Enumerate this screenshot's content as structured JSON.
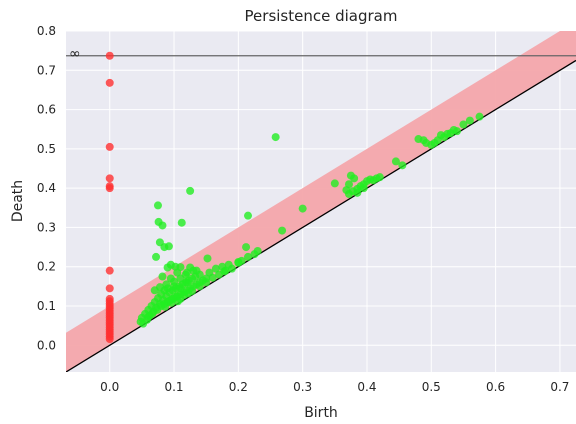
{
  "chart_data": {
    "type": "scatter",
    "title": "Persistence diagram",
    "xlabel": "Birth",
    "ylabel": "Death",
    "xlim": [
      -0.068,
      0.725
    ],
    "ylim": [
      -0.068,
      0.8
    ],
    "x_ticks": [
      0.0,
      0.1,
      0.2,
      0.3,
      0.4,
      0.5,
      0.6,
      0.7
    ],
    "y_ticks": [
      0.0,
      0.1,
      0.2,
      0.3,
      0.4,
      0.5,
      0.6,
      0.7,
      0.8
    ],
    "x_tick_labels": [
      "0.0",
      "0.1",
      "0.2",
      "0.3",
      "0.4",
      "0.5",
      "0.6",
      "0.7"
    ],
    "y_tick_labels": [
      "0.0",
      "0.1",
      "0.2",
      "0.3",
      "0.4",
      "0.5",
      "0.6",
      "0.7",
      "0.8"
    ],
    "grid": true,
    "infinity_line": {
      "y": 0.737,
      "label": "∞",
      "color": "#666666"
    },
    "diagonal_band": {
      "width": 0.1,
      "color": "#f4a6ab"
    },
    "diagonal_color": "#000000",
    "background": "#eaeaf2",
    "series": [
      {
        "color": "#ff3030",
        "points": [
          [
            0.0,
            0.737
          ],
          [
            0.0,
            0.668
          ],
          [
            0.0,
            0.505
          ],
          [
            0.0,
            0.425
          ],
          [
            0.0,
            0.405
          ],
          [
            0.0,
            0.4
          ],
          [
            0.0,
            0.19
          ],
          [
            0.0,
            0.145
          ],
          [
            0.0,
            0.118
          ],
          [
            0.0,
            0.112
          ],
          [
            0.0,
            0.106
          ],
          [
            0.0,
            0.1
          ],
          [
            0.0,
            0.094
          ],
          [
            0.0,
            0.088
          ],
          [
            0.0,
            0.082
          ],
          [
            0.0,
            0.076
          ],
          [
            0.0,
            0.07
          ],
          [
            0.0,
            0.064
          ],
          [
            0.0,
            0.058
          ],
          [
            0.0,
            0.052
          ],
          [
            0.0,
            0.046
          ],
          [
            0.0,
            0.04
          ],
          [
            0.0,
            0.034
          ],
          [
            0.0,
            0.028
          ],
          [
            0.0,
            0.022
          ],
          [
            0.0,
            0.016
          ]
        ]
      },
      {
        "color": "#22ee22",
        "points": [
          [
            0.258,
            0.53
          ],
          [
            0.125,
            0.393
          ],
          [
            0.075,
            0.356
          ],
          [
            0.082,
            0.305
          ],
          [
            0.076,
            0.314
          ],
          [
            0.112,
            0.312
          ],
          [
            0.078,
            0.262
          ],
          [
            0.092,
            0.252
          ],
          [
            0.085,
            0.25
          ],
          [
            0.072,
            0.225
          ],
          [
            0.215,
            0.33
          ],
          [
            0.212,
            0.25
          ],
          [
            0.268,
            0.292
          ],
          [
            0.3,
            0.348
          ],
          [
            0.152,
            0.221
          ],
          [
            0.095,
            0.205
          ],
          [
            0.102,
            0.2
          ],
          [
            0.09,
            0.198
          ],
          [
            0.11,
            0.199
          ],
          [
            0.125,
            0.198
          ],
          [
            0.13,
            0.19
          ],
          [
            0.105,
            0.185
          ],
          [
            0.118,
            0.18
          ],
          [
            0.082,
            0.175
          ],
          [
            0.095,
            0.17
          ],
          [
            0.14,
            0.18
          ],
          [
            0.155,
            0.185
          ],
          [
            0.165,
            0.195
          ],
          [
            0.175,
            0.2
          ],
          [
            0.185,
            0.205
          ],
          [
            0.19,
            0.195
          ],
          [
            0.2,
            0.21
          ],
          [
            0.225,
            0.232
          ],
          [
            0.205,
            0.215
          ],
          [
            0.18,
            0.19
          ],
          [
            0.15,
            0.17
          ],
          [
            0.145,
            0.165
          ],
          [
            0.12,
            0.16
          ],
          [
            0.1,
            0.15
          ],
          [
            0.09,
            0.145
          ],
          [
            0.085,
            0.14
          ],
          [
            0.08,
            0.13
          ],
          [
            0.075,
            0.12
          ],
          [
            0.07,
            0.11
          ],
          [
            0.065,
            0.1
          ],
          [
            0.06,
            0.09
          ],
          [
            0.055,
            0.08
          ],
          [
            0.05,
            0.07
          ],
          [
            0.048,
            0.06
          ],
          [
            0.052,
            0.055
          ],
          [
            0.058,
            0.065
          ],
          [
            0.062,
            0.075
          ],
          [
            0.068,
            0.085
          ],
          [
            0.072,
            0.095
          ],
          [
            0.078,
            0.105
          ],
          [
            0.083,
            0.115
          ],
          [
            0.088,
            0.125
          ],
          [
            0.093,
            0.135
          ],
          [
            0.098,
            0.14
          ],
          [
            0.103,
            0.145
          ],
          [
            0.108,
            0.15
          ],
          [
            0.113,
            0.155
          ],
          [
            0.118,
            0.16
          ],
          [
            0.123,
            0.165
          ],
          [
            0.128,
            0.17
          ],
          [
            0.133,
            0.175
          ],
          [
            0.09,
            0.11
          ],
          [
            0.095,
            0.115
          ],
          [
            0.1,
            0.12
          ],
          [
            0.105,
            0.125
          ],
          [
            0.11,
            0.13
          ],
          [
            0.115,
            0.135
          ],
          [
            0.12,
            0.14
          ],
          [
            0.125,
            0.145
          ],
          [
            0.13,
            0.15
          ],
          [
            0.135,
            0.155
          ],
          [
            0.14,
            0.16
          ],
          [
            0.08,
            0.1
          ],
          [
            0.085,
            0.105
          ],
          [
            0.092,
            0.112
          ],
          [
            0.098,
            0.118
          ],
          [
            0.104,
            0.124
          ],
          [
            0.11,
            0.118
          ],
          [
            0.116,
            0.128
          ],
          [
            0.122,
            0.132
          ],
          [
            0.128,
            0.138
          ],
          [
            0.06,
            0.072
          ],
          [
            0.066,
            0.08
          ],
          [
            0.074,
            0.09
          ],
          [
            0.086,
            0.098
          ],
          [
            0.096,
            0.108
          ],
          [
            0.106,
            0.112
          ],
          [
            0.14,
            0.15
          ],
          [
            0.15,
            0.16
          ],
          [
            0.16,
            0.172
          ],
          [
            0.17,
            0.18
          ],
          [
            0.178,
            0.188
          ],
          [
            0.2,
            0.212
          ],
          [
            0.215,
            0.225
          ],
          [
            0.23,
            0.24
          ],
          [
            0.11,
            0.17
          ],
          [
            0.1,
            0.162
          ],
          [
            0.088,
            0.155
          ],
          [
            0.078,
            0.148
          ],
          [
            0.07,
            0.14
          ],
          [
            0.12,
            0.185
          ],
          [
            0.135,
            0.19
          ],
          [
            0.11,
            0.145
          ],
          [
            0.35,
            0.412
          ],
          [
            0.375,
            0.432
          ],
          [
            0.38,
            0.425
          ],
          [
            0.372,
            0.41
          ],
          [
            0.368,
            0.395
          ],
          [
            0.378,
            0.392
          ],
          [
            0.385,
            0.398
          ],
          [
            0.39,
            0.405
          ],
          [
            0.395,
            0.41
          ],
          [
            0.4,
            0.418
          ],
          [
            0.405,
            0.422
          ],
          [
            0.41,
            0.42
          ],
          [
            0.415,
            0.425
          ],
          [
            0.42,
            0.428
          ],
          [
            0.395,
            0.4
          ],
          [
            0.385,
            0.388
          ],
          [
            0.372,
            0.385
          ],
          [
            0.445,
            0.468
          ],
          [
            0.455,
            0.458
          ],
          [
            0.48,
            0.525
          ],
          [
            0.488,
            0.522
          ],
          [
            0.492,
            0.515
          ],
          [
            0.5,
            0.51
          ],
          [
            0.51,
            0.522
          ],
          [
            0.515,
            0.535
          ],
          [
            0.52,
            0.53
          ],
          [
            0.53,
            0.54
          ],
          [
            0.535,
            0.548
          ],
          [
            0.525,
            0.538
          ],
          [
            0.55,
            0.562
          ],
          [
            0.56,
            0.572
          ],
          [
            0.575,
            0.582
          ],
          [
            0.54,
            0.545
          ],
          [
            0.505,
            0.515
          ]
        ]
      }
    ]
  }
}
